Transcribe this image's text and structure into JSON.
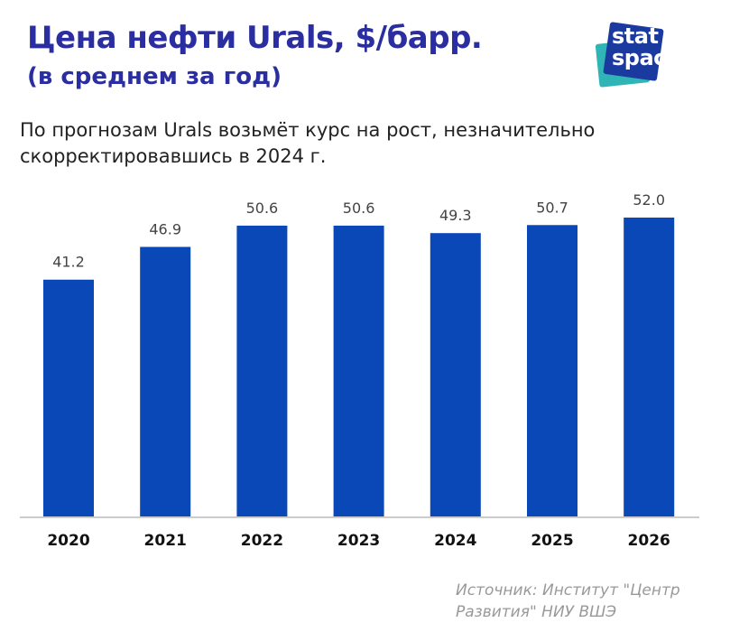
{
  "title": "Цена нефти Urals, $/барр.",
  "subtitle": "(в среднем за год)",
  "description": "По прогнозам Urals возьмёт курс на рост, незначительно скорректировавшись в 2024 г.",
  "source": "Источник: Институт \"Центр Развития\" НИУ ВШЭ",
  "logo_text": "stat space",
  "colors": {
    "bar": "#0a48b8",
    "title": "#2a2ea0",
    "axis": "#cccccc"
  },
  "chart_data": {
    "type": "bar",
    "title": "Цена нефти Urals, $/барр.",
    "categories": [
      "2020",
      "2021",
      "2022",
      "2023",
      "2024",
      "2025",
      "2026"
    ],
    "values": [
      41.2,
      46.9,
      50.6,
      50.6,
      49.3,
      50.7,
      52.0
    ],
    "value_labels": [
      "41.2",
      "46.9",
      "50.6",
      "50.6",
      "49.3",
      "50.7",
      "52.0"
    ],
    "ylim": [
      0,
      52.0
    ],
    "grid": false,
    "yaxis_visible": false
  }
}
